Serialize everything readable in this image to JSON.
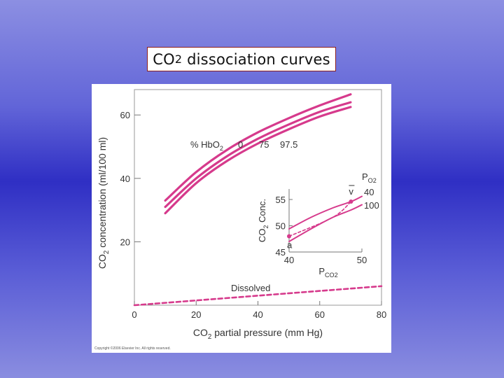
{
  "slide": {
    "title_main": "CO",
    "title_sub": "2",
    "title_rest": " dissociation curves",
    "copyright": "Copyright ©2006 Elsevier Inc. All rights reserved."
  },
  "chart_data": [
    {
      "type": "line",
      "xlabel": "CO2 partial pressure (mm Hg)",
      "ylabel": "CO2 concentration (ml/100 ml)",
      "xlim": [
        0,
        80
      ],
      "ylim": [
        0,
        68
      ],
      "xticks": [
        0,
        20,
        40,
        60,
        80
      ],
      "yticks": [
        20,
        40,
        60
      ],
      "grid": false,
      "series_label_prefix": "% HbO2",
      "series": [
        {
          "name": "0",
          "color": "#d63a8c",
          "dash": false,
          "x": [
            10,
            20,
            30,
            40,
            50,
            60,
            70
          ],
          "y": [
            33,
            42,
            49,
            54.5,
            59,
            63,
            66.5
          ]
        },
        {
          "name": "75",
          "color": "#d63a8c",
          "dash": false,
          "x": [
            10,
            20,
            30,
            40,
            50,
            60,
            70
          ],
          "y": [
            31,
            40,
            47,
            52.5,
            57,
            61,
            64
          ]
        },
        {
          "name": "97.5",
          "color": "#d63a8c",
          "dash": false,
          "x": [
            10,
            20,
            30,
            40,
            50,
            60,
            70
          ],
          "y": [
            29,
            38.5,
            45.5,
            51,
            55.5,
            59.5,
            62.5
          ]
        },
        {
          "name": "Dissolved",
          "color": "#d63a8c",
          "dash": true,
          "x": [
            0,
            20,
            40,
            60,
            80
          ],
          "y": [
            0,
            1.5,
            3,
            4.5,
            6
          ]
        }
      ],
      "annotations": {
        "hb_label": "% HbO",
        "hb_label_sub": "2",
        "dissolved_label": "Dissolved"
      }
    },
    {
      "type": "line",
      "inset": true,
      "xlabel": "P",
      "xlabel_sub": "CO2",
      "ylabel": "CO",
      "ylabel_sub": "2",
      "ylabel_rest": " Conc.",
      "xlim": [
        40,
        50
      ],
      "ylim": [
        45,
        57
      ],
      "xticks": [
        40,
        50
      ],
      "yticks": [
        45,
        50,
        55
      ],
      "legend_title": "P",
      "legend_title_sub": "O2",
      "series": [
        {
          "name": "40",
          "color": "#d63a8c",
          "dash": false,
          "x": [
            40,
            43,
            46,
            48.5,
            50
          ],
          "y": [
            49.4,
            51.6,
            53.4,
            54.6,
            55.6
          ]
        },
        {
          "name": "100",
          "color": "#d63a8c",
          "dash": false,
          "x": [
            40,
            43,
            46,
            48.5,
            50
          ],
          "y": [
            47.0,
            49.4,
            51.6,
            53.0,
            54.0
          ]
        },
        {
          "name": "a-v",
          "color": "#d63a8c",
          "dash": true,
          "x": [
            40,
            46,
            48.5
          ],
          "y": [
            48.0,
            51.6,
            54.6
          ]
        }
      ],
      "points": [
        {
          "label": "a",
          "x": 40,
          "y": 48.0
        },
        {
          "label": "v",
          "x": 48.5,
          "y": 54.6
        }
      ]
    }
  ]
}
